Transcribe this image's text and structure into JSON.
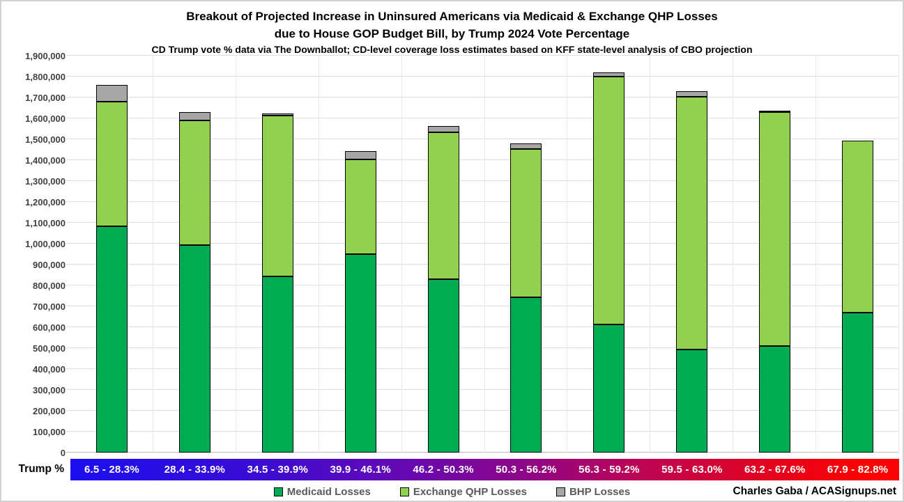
{
  "title": {
    "line1": "Breakout of Projected Increase in Uninsured Americans via Medicaid & Exchange QHP Losses",
    "line2": "due to House GOP Budget Bill, by Trump 2024 Vote Percentage",
    "subtitle": "CD Trump vote % data via The Downballot; CD-level coverage loss estimates based on KFF state-level analysis of CBO projection"
  },
  "axis": {
    "x_axis_title": "Trump %",
    "y_min_label": "0",
    "y_max_label": "1,900,000"
  },
  "footer": {
    "attribution": "Charles Gaba / ACASignups.net"
  },
  "colors": {
    "medicaid": "#00ab52",
    "exchange_qhp": "#92d050",
    "bhp": "#a6a6a6",
    "band_gradient_start": "#1b0ef0",
    "band_gradient_end": "#fc0202",
    "gridline": "#dedede",
    "legend_text": "#595959",
    "y_label_text": "#404040"
  },
  "chart_data": {
    "type": "bar",
    "stacked": true,
    "title": "Breakout of Projected Increase in Uninsured Americans via Medicaid & Exchange QHP Losses due to House GOP Budget Bill, by Trump 2024 Vote Percentage",
    "xlabel": "Trump %",
    "ylabel": "",
    "ylim": [
      0,
      1900000
    ],
    "ytick_step": 100000,
    "grid": true,
    "legend_position": "bottom",
    "categories": [
      "6.5 - 28.3%",
      "28.4 - 33.9%",
      "34.5 - 39.9%",
      "39.9 - 46.1%",
      "46.2 - 50.3%",
      "50.3 - 56.2%",
      "56.3 - 59.2%",
      "59.5 - 63.0%",
      "63.2 - 67.6%",
      "67.9 - 82.8%"
    ],
    "series": [
      {
        "name": "Medicaid Losses",
        "color": "#00ab52",
        "values": [
          1085000,
          995000,
          845000,
          950000,
          830000,
          745000,
          615000,
          495000,
          510000,
          670000
        ]
      },
      {
        "name": "Exchange QHP Losses",
        "color": "#92d050",
        "values": [
          595000,
          595000,
          770000,
          455000,
          705000,
          710000,
          1185000,
          1210000,
          1120000,
          825000
        ]
      },
      {
        "name": "BHP Losses",
        "color": "#a6a6a6",
        "values": [
          80000,
          40000,
          10000,
          40000,
          30000,
          25000,
          20000,
          25000,
          5000,
          0
        ]
      }
    ],
    "stack_totals": [
      1760000,
      1630000,
      1625000,
      1445000,
      1565000,
      1480000,
      1820000,
      1730000,
      1635000,
      1495000
    ]
  }
}
